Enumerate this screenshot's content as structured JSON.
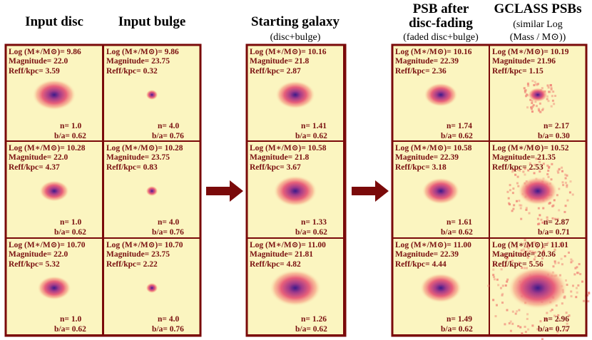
{
  "columns": [
    {
      "title": [
        "Input disc"
      ],
      "panels": [
        {
          "mass": "Log (M∗/M⊙)= 9.86",
          "magnitude": "Magnitude= 22.0",
          "reff": "Reff/kpc= 3.59",
          "n": "n= 1.0",
          "ba": "b/a= 0.62"
        },
        {
          "mass": "Log (M∗/M⊙)= 10.28",
          "magnitude": "Magnitude= 22.0",
          "reff": "Reff/kpc= 4.37",
          "n": "n= 1.0",
          "ba": "b/a= 0.62"
        },
        {
          "mass": "Log (M∗/M⊙)= 10.70",
          "magnitude": "Magnitude= 22.0",
          "reff": "Reff/kpc= 5.32",
          "n": "n= 1.0",
          "ba": "b/a= 0.62"
        }
      ]
    },
    {
      "title": [
        "Input bulge"
      ],
      "panels": [
        {
          "mass": "Log (M∗/M⊙)= 9.86",
          "magnitude": "Magnitude= 23.75",
          "reff": "Reff/kpc= 0.32",
          "n": "n= 4.0",
          "ba": "b/a= 0.76"
        },
        {
          "mass": "Log (M∗/M⊙)= 10.28",
          "magnitude": "Magnitude= 23.75",
          "reff": "Reff/kpc= 0.83",
          "n": "n= 4.0",
          "ba": "b/a= 0.76"
        },
        {
          "mass": "Log (M∗/M⊙)= 10.70",
          "magnitude": "Magnitude= 23.75",
          "reff": "Reff/kpc= 2.22",
          "n": "n= 4.0",
          "ba": "b/a= 0.76"
        }
      ]
    },
    {
      "title": [
        "Starting galaxy",
        "(disc+bulge)"
      ],
      "panels": [
        {
          "mass": "Log (M∗/M⊙)= 10.16",
          "magnitude": "Magnitude= 21.8",
          "reff": "Reff/kpc= 2.87",
          "n": "n= 1.41",
          "ba": "b/a= 0.62"
        },
        {
          "mass": "Log (M∗/M⊙)= 10.58",
          "magnitude": "Magnitude= 21.8",
          "reff": "Reff/kpc= 3.67",
          "n": "n= 1.33",
          "ba": "b/a= 0.62"
        },
        {
          "mass": "Log (M∗/M⊙)= 11.00",
          "magnitude": "Magnitude= 21.81",
          "reff": "Reff/kpc= 4.82",
          "n": "n= 1.26",
          "ba": "b/a= 0.62"
        }
      ]
    },
    {
      "title": [
        "PSB after",
        "disc-fading",
        "(faded disc+bulge)"
      ],
      "panels": [
        {
          "mass": "Log (M∗/M⊙)= 10.16",
          "magnitude": "Magnitude= 22.39",
          "reff": "Reff/kpc= 2.36",
          "n": "n= 1.74",
          "ba": "b/a= 0.62"
        },
        {
          "mass": "Log (M∗/M⊙)= 10.58",
          "magnitude": "Magnitude= 22.39",
          "reff": "Reff/kpc= 3.18",
          "n": "n= 1.61",
          "ba": "b/a= 0.62"
        },
        {
          "mass": "Log (M∗/M⊙)= 11.00",
          "magnitude": "Magnitude= 22.39",
          "reff": "Reff/kpc= 4.44",
          "n": "n= 1.49",
          "ba": "b/a= 0.62"
        }
      ]
    },
    {
      "title": [
        "GCLASS PSBs",
        "(similar Log",
        "(Mass / M⊙))"
      ],
      "panels": [
        {
          "mass": "Log (M∗/M⊙)= 10.19",
          "magnitude": "Magnitude= 21.96",
          "reff": "Reff/kpc= 1.15",
          "n": "n= 2.17",
          "ba": "b/a= 0.30"
        },
        {
          "mass": "Log (M∗/M⊙)= 10.52",
          "magnitude": "Magnitude= 21.35",
          "reff": "Reff/kpc= 2.53",
          "n": "n= 2.87",
          "ba": "b/a= 0.71"
        },
        {
          "mass": "Log (M∗/M⊙)= 11.01",
          "magnitude": "Magnitude= 20.36",
          "reff": "Reff/kpc= 5.56",
          "n": "n= 2.96",
          "ba": "b/a= 0.77"
        }
      ]
    }
  ]
}
